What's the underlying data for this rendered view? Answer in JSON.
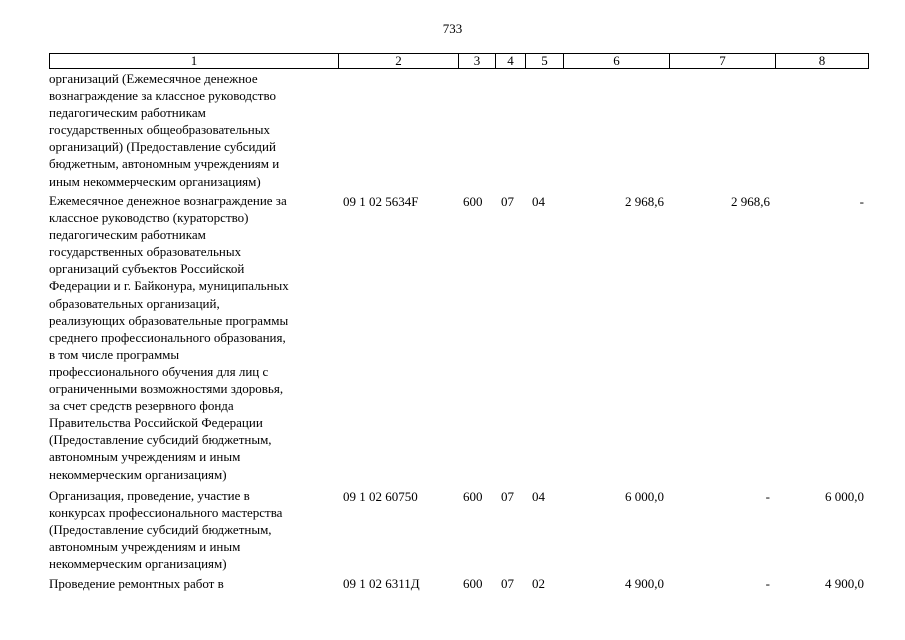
{
  "page_number": "733",
  "header": [
    "1",
    "2",
    "3",
    "4",
    "5",
    "6",
    "7",
    "8"
  ],
  "continuation_text": "организаций (Ежемесячное денежное\nвознаграждение за классное руководство\nпедагогическим работникам\nгосударственных общеобразовательных\nорганизаций) (Предоставление субсидий\nбюджетным, автономным учреждениям и\nиным некоммерческим организациям)",
  "rows": [
    {
      "description": "Ежемесячное денежное вознаграждение за\nклассное руководство (кураторство)\nпедагогическим работникам\nгосударственных образовательных\nорганизаций субъектов Российской\nФедерации и г. Байконура, муниципальных\nобразовательных организаций,\nреализующих образовательные программы\nсреднего профессионального образования,\nв том числе программы\nпрофессионального обучения для лиц с\nограниченными возможностями здоровья,\nза счет средств резервного фонда\nПравительства Российской Федерации\n(Предоставление субсидий бюджетным,\nавтономным учреждениям и иным\nнекоммерческим организациям)",
      "code": "09 1 02 5634F",
      "c3": "600",
      "c4": "07",
      "c5": "04",
      "c6": "2 968,6",
      "c7": "2 968,6",
      "c8": "-"
    },
    {
      "description": "Организация, проведение, участие в\nконкурсах профессионального мастерства\n(Предоставление субсидий бюджетным,\nавтономным учреждениям и иным\nнекоммерческим организациям)",
      "code": "09 1 02 60750",
      "c3": "600",
      "c4": "07",
      "c5": "04",
      "c6": "6 000,0",
      "c7": "-",
      "c8": "6 000,0"
    },
    {
      "description": "Проведение ремонтных работ в",
      "code": "09 1 02 6311Д",
      "c3": "600",
      "c4": "07",
      "c5": "02",
      "c6": "4 900,0",
      "c7": "-",
      "c8": "4 900,0"
    }
  ]
}
